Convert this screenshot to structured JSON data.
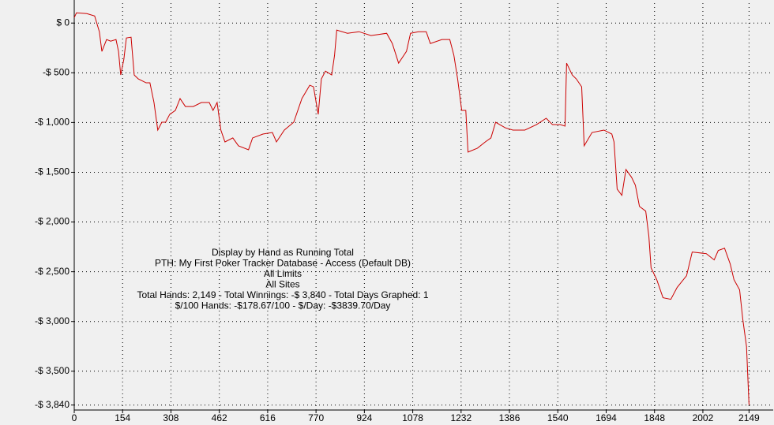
{
  "chart_data": {
    "type": "line",
    "annotations": [
      "Display by Hand as Running Total",
      "PTH: My First Poker Tracker Database - Access (Default DB)",
      "All Limits",
      "All Sites",
      "Total Hands: 2,149 - Total Winnings: -$ 3,840 - Total Days Graphed: 1",
      "$/100 Hands: -$178.67/100 - $/Day: -$3839.70/Day"
    ],
    "xlim": [
      0,
      2226
    ],
    "ylim": [
      -3890,
      200
    ],
    "xticks": [
      0,
      154,
      308,
      462,
      616,
      770,
      924,
      1078,
      1232,
      1386,
      1540,
      1694,
      1848,
      2002,
      2149
    ],
    "yticks": [
      {
        "value": 0,
        "label": "$ 0"
      },
      {
        "value": -500,
        "label": "-$ 500"
      },
      {
        "value": -1000,
        "label": "-$ 1,000"
      },
      {
        "value": -1500,
        "label": "-$ 1,500"
      },
      {
        "value": -2000,
        "label": "-$ 2,000"
      },
      {
        "value": -2500,
        "label": "-$ 2,500"
      },
      {
        "value": -3000,
        "label": "-$ 3,000"
      },
      {
        "value": -3500,
        "label": "-$ 3,500"
      },
      {
        "value": -3840,
        "label": "-$ 3,840"
      }
    ],
    "grid": true,
    "series": [
      {
        "color": "#cc0000",
        "x": [
          0,
          7,
          40,
          65,
          80,
          88,
          103,
          116,
          133,
          141,
          148,
          158,
          166,
          181,
          191,
          204,
          229,
          241,
          254,
          266,
          279,
          291,
          304,
          322,
          337,
          354,
          379,
          405,
          430,
          442,
          455,
          467,
          480,
          505,
          523,
          555,
          568,
          601,
          631,
          644,
          669,
          699,
          725,
          750,
          762,
          777,
          787,
          800,
          820,
          829,
          836,
          870,
          907,
          945,
          995,
          1013,
          1033,
          1058,
          1071,
          1096,
          1121,
          1134,
          1171,
          1196,
          1209,
          1221,
          1234,
          1247,
          1254,
          1284,
          1309,
          1327,
          1342,
          1372,
          1397,
          1435,
          1472,
          1503,
          1523,
          1548,
          1563,
          1568,
          1586,
          1599,
          1616,
          1624,
          1649,
          1687,
          1712,
          1719,
          1729,
          1744,
          1757,
          1775,
          1787,
          1800,
          1820,
          1830,
          1837,
          1855,
          1875,
          1900,
          1920,
          1950,
          1968,
          2013,
          2038,
          2051,
          2071,
          2089,
          2101,
          2119,
          2129,
          2141,
          2149
        ],
        "values": [
          55,
          103,
          95,
          71,
          -87,
          -285,
          -166,
          -182,
          -166,
          -285,
          -522,
          -364,
          -150,
          -142,
          -522,
          -562,
          -601,
          -601,
          -799,
          -1076,
          -997,
          -997,
          -918,
          -878,
          -759,
          -839,
          -839,
          -799,
          -799,
          -878,
          -799,
          -1076,
          -1195,
          -1155,
          -1234,
          -1274,
          -1155,
          -1116,
          -1100,
          -1195,
          -1076,
          -997,
          -759,
          -625,
          -641,
          -918,
          -562,
          -483,
          -522,
          -324,
          -71,
          -103,
          -87,
          -126,
          -103,
          -206,
          -403,
          -285,
          -103,
          -87,
          -87,
          -206,
          -166,
          -166,
          -324,
          -562,
          -878,
          -878,
          -1297,
          -1258,
          -1195,
          -1155,
          -997,
          -1052,
          -1076,
          -1076,
          -1021,
          -957,
          -1021,
          -1021,
          -1036,
          -403,
          -522,
          -562,
          -641,
          -1234,
          -1100,
          -1076,
          -1116,
          -1195,
          -1669,
          -1732,
          -1472,
          -1551,
          -1630,
          -1843,
          -1891,
          -2144,
          -2460,
          -2579,
          -2761,
          -2777,
          -2658,
          -2540,
          -2302,
          -2318,
          -2381,
          -2286,
          -2263,
          -2421,
          -2579,
          -2682,
          -2975,
          -3252,
          -3840
        ]
      }
    ]
  }
}
